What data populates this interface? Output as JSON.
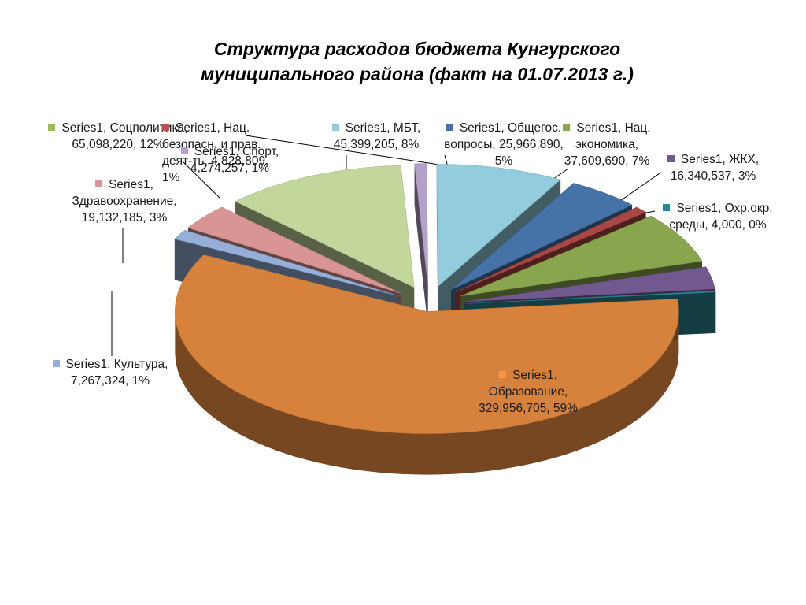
{
  "title_line1": "Структура расходов бюджета Кунгурского",
  "title_line2": "муниципального района (факт на 01.07.2013 г.)",
  "chart_data": {
    "type": "pie",
    "series": [
      {
        "name": "Series1",
        "slices": [
          {
            "category": "Образование",
            "value": 329956705,
            "percent": "59%",
            "value_text": "329,956,705",
            "color": "#d6813c"
          },
          {
            "category": "Культура",
            "value": 7267324,
            "percent": "1%",
            "value_text": "7,267,324",
            "color": "#95afd8"
          },
          {
            "category": "Здравоохранение",
            "value": 19132185,
            "percent": "3%",
            "value_text": "19,132,185",
            "color": "#d99594"
          },
          {
            "category": "Соцполитика",
            "value": 65098220,
            "percent": "12%",
            "value_text": "65,098,220",
            "color": "#c3d69b"
          },
          {
            "category": "Спорт",
            "value": 4274257,
            "percent": "1%",
            "value_text": "4,274,257",
            "color": "#b3a2c7"
          },
          {
            "category": "МБТ",
            "value": 45399205,
            "percent": "8%",
            "value_text": "45,399,205",
            "color": "#93cddd"
          },
          {
            "category": "Общегос. вопросы",
            "value": 25966890,
            "percent": "5%",
            "value_text": "25,966,890",
            "color": "#4572a7"
          },
          {
            "category": "Нац. безопасн. и прав. деят-ть",
            "value": 4828809,
            "percent": "1%",
            "value_text": "4,828,809",
            "color": "#aa4643"
          },
          {
            "category": "Нац. экономика",
            "value": 37609690,
            "percent": "7%",
            "value_text": "37,609,690",
            "color": "#89a54e"
          },
          {
            "category": "ЖКХ",
            "value": 16340537,
            "percent": "3%",
            "value_text": "16,340,537",
            "color": "#71588f"
          },
          {
            "category": "Охр.окр. среды",
            "value": 4000,
            "percent": "0%",
            "value_text": "4,000",
            "color": "#2e8796"
          }
        ]
      }
    ]
  },
  "labels": {
    "soc": "Series1, Соцполитика, 65,098,220, 12%",
    "nacbez": "Series1, Нац. безопасн. и прав. деят-ть, 4,828,809, 1%",
    "sport": "Series1, Спорт, 4,274,257, 1%",
    "mbt": "Series1, МБТ, 45,399,205, 8%",
    "obsh": "Series1, Общегос. вопросы, 25,966,890, 5%",
    "naceco": "Series1, Нац. экономика, 37,609,690, 7%",
    "zhkh": "Series1, ЖКХ, 16,340,537, 3%",
    "ohr": "Series1, Охр.окр. среды, 4,000, 0%",
    "zdrav": "Series1, Здравоохранение, 19,132,185, 3%",
    "kult": "Series1, Культура, 7,267,324, 1%",
    "obraz": "Series1, Образование, 329,956,705, 59%"
  }
}
